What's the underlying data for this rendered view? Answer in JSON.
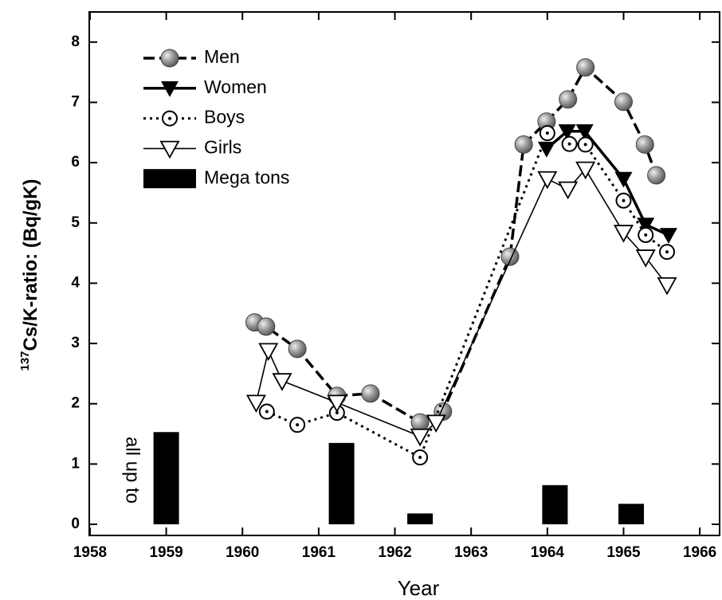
{
  "chart_data": {
    "type": "line",
    "x_label": "Year",
    "y_label_sup": "137",
    "y_label": "Cs/K-ratio: (Bq/gK)",
    "annotation": "all up to",
    "xlim": [
      1957.99,
      1966.26
    ],
    "xticks": [
      1958,
      1959,
      1960,
      1961,
      1962,
      1963,
      1964,
      1965,
      1966
    ],
    "ylim": [
      -0.185,
      8.5
    ],
    "yticks": [
      0,
      1,
      2,
      3,
      4,
      5,
      6,
      7,
      8
    ],
    "legend": "upper left",
    "series": [
      {
        "name": "Men",
        "color": "#000000",
        "marker": "sphere",
        "line": "dashed",
        "x": [
          1960.16,
          1960.31,
          1960.72,
          1961.24,
          1961.68,
          1962.33,
          1962.63,
          1963.51,
          1963.69,
          1963.99,
          1964.27,
          1964.5,
          1965.0,
          1965.28,
          1965.43
        ],
        "values": [
          3.35,
          3.28,
          2.91,
          2.13,
          2.17,
          1.69,
          1.87,
          4.44,
          6.3,
          6.68,
          7.05,
          7.58,
          7.01,
          6.3,
          5.79
        ]
      },
      {
        "name": "Women",
        "color": "#000000",
        "marker": "triangle-filled",
        "line": "solid-thick",
        "x": [
          1963.99,
          1964.26,
          1964.49,
          1965.0,
          1965.29,
          1965.59
        ],
        "values": [
          6.23,
          6.52,
          6.52,
          5.73,
          4.97,
          4.8
        ]
      },
      {
        "name": "Boys",
        "color": "#000000",
        "marker": "circle-open",
        "line": "dotted",
        "x": [
          1960.32,
          1960.72,
          1961.24,
          1962.33,
          1964.0,
          1964.29,
          1964.5,
          1965.0,
          1965.29,
          1965.57
        ],
        "values": [
          1.87,
          1.65,
          1.85,
          1.11,
          6.49,
          6.31,
          6.3,
          5.37,
          4.8,
          4.52
        ]
      },
      {
        "name": "Girls",
        "color": "#000000",
        "marker": "triangle-open",
        "line": "solid-thin",
        "x": [
          1960.18,
          1960.34,
          1960.52,
          1961.24,
          1962.33,
          1962.54,
          1964.0,
          1964.27,
          1964.5,
          1965.0,
          1965.29,
          1965.57
        ],
        "values": [
          2.02,
          2.88,
          2.38,
          2.02,
          1.46,
          1.69,
          5.73,
          5.56,
          5.89,
          4.84,
          4.43,
          3.97
        ]
      },
      {
        "name": "Mega tons",
        "color": "#000000",
        "marker": "bar",
        "x": [
          1959.0,
          1961.3,
          1962.33,
          1964.1,
          1965.1
        ],
        "values": [
          1.53,
          1.35,
          0.18,
          0.65,
          0.34
        ]
      }
    ]
  }
}
